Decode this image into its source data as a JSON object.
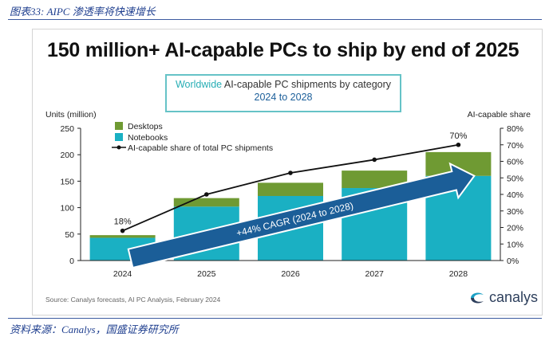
{
  "figure_caption": "图表33: AIPC 渗透率将快速增长",
  "footer": "资料来源：Canalys，国盛证券研究所",
  "headline": "150 million+ AI-capable PCs to ship by end of 2025",
  "subtitle": {
    "highlight": "Worldwide",
    "rest": " AI-capable PC shipments by category",
    "period": "2024 to 2028"
  },
  "source": "Source: Canalys forecasts, AI PC Analysis, February 2024",
  "logo": {
    "text": "canalys",
    "icon": "canalys-wave-icon"
  },
  "colors": {
    "desktops": "#6f9a33",
    "notebooks": "#1ab0c3",
    "line": "#111111",
    "arrow": "#1b5e98"
  },
  "chart_data": {
    "type": "bar",
    "stacked": true,
    "categories": [
      "2024",
      "2025",
      "2026",
      "2027",
      "2028"
    ],
    "series": [
      {
        "name": "Notebooks",
        "values": [
          43,
          102,
          122,
          137,
          160
        ]
      },
      {
        "name": "Desktops",
        "values": [
          5,
          16,
          25,
          33,
          45
        ]
      }
    ],
    "line_series": {
      "name": "AI-capable share of total PC shipments",
      "values": [
        18,
        40,
        53,
        61,
        70
      ],
      "axis": "right"
    },
    "ylabel": "Units (million)",
    "y2label": "AI-capable share",
    "ylim": [
      0,
      250
    ],
    "y2lim": [
      0,
      80
    ],
    "yticks": [
      "0",
      "50",
      "100",
      "150",
      "200",
      "250"
    ],
    "y2ticks": [
      "0%",
      "10%",
      "20%",
      "30%",
      "40%",
      "50%",
      "60%",
      "70%",
      "80%"
    ],
    "data_labels": [
      {
        "category": "2024",
        "text": "18%"
      },
      {
        "category": "2028",
        "text": "70%"
      }
    ],
    "annotation": "+44% CAGR (2024 to 2028)",
    "legend_position": "top-left",
    "grid": false
  }
}
